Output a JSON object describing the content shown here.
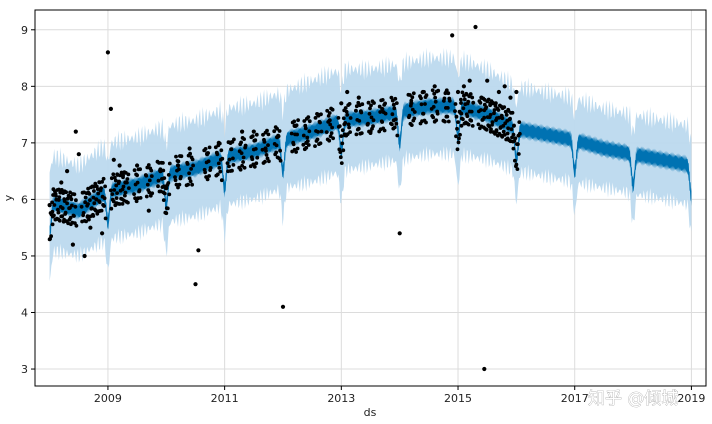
{
  "chart_data": {
    "type": "line",
    "xlabel": "ds",
    "ylabel": "y",
    "xlim": [
      2007.75,
      2019.25
    ],
    "ylim": [
      2.7,
      9.35
    ],
    "x_ticks": [
      2009,
      2011,
      2013,
      2015,
      2017,
      2019
    ],
    "x_tick_labels": [
      "2009",
      "2011",
      "2013",
      "2015",
      "2017",
      "2019"
    ],
    "y_ticks": [
      3,
      4,
      5,
      6,
      7,
      8,
      9
    ],
    "y_tick_labels": [
      "3",
      "4",
      "5",
      "6",
      "7",
      "8",
      "9"
    ],
    "grid": true,
    "legend": "none",
    "series": [
      {
        "kind": "uncertainty_band",
        "color": "#bcd9ee",
        "x": [
          2008.0,
          2008.5,
          2009.0,
          2009.5,
          2010.0,
          2010.5,
          2011.0,
          2011.5,
          2012.0,
          2012.5,
          2013.0,
          2013.5,
          2014.0,
          2014.5,
          2015.0,
          2015.5,
          2016.0,
          2016.5,
          2017.0,
          2017.5,
          2018.0,
          2018.5,
          2019.0
        ],
        "lower": [
          5.1,
          5.0,
          5.3,
          5.4,
          5.6,
          5.7,
          5.9,
          6.0,
          6.2,
          6.3,
          6.5,
          6.6,
          6.7,
          6.8,
          6.8,
          6.7,
          6.5,
          6.4,
          6.3,
          6.2,
          6.1,
          6.0,
          5.9
        ],
        "upper": [
          6.8,
          6.6,
          7.0,
          7.1,
          7.3,
          7.4,
          7.6,
          7.7,
          7.9,
          8.1,
          8.3,
          8.3,
          8.4,
          8.5,
          8.5,
          8.3,
          8.0,
          7.9,
          7.8,
          7.6,
          7.5,
          7.4,
          7.3
        ]
      },
      {
        "kind": "forecast",
        "color": "#0072b2",
        "x": [
          2008.0,
          2008.5,
          2009.0,
          2009.5,
          2010.0,
          2010.5,
          2011.0,
          2011.5,
          2012.0,
          2012.5,
          2013.0,
          2013.5,
          2014.0,
          2014.5,
          2015.0,
          2015.5,
          2016.0,
          2016.5,
          2017.0,
          2017.5,
          2018.0,
          2018.5,
          2019.0
        ],
        "values": [
          5.95,
          5.8,
          6.15,
          6.25,
          6.45,
          6.55,
          6.75,
          6.85,
          7.05,
          7.2,
          7.4,
          7.45,
          7.55,
          7.65,
          7.65,
          7.5,
          7.25,
          7.15,
          7.05,
          6.9,
          6.8,
          6.7,
          6.6
        ],
        "weekly_spread": 0.35,
        "yearly_dip": 0.55
      },
      {
        "kind": "observations",
        "color": "#000000",
        "x": [
          2008.0,
          2008.1,
          2008.2,
          2008.3,
          2008.4,
          2008.45,
          2008.5,
          2008.6,
          2008.7,
          2008.8,
          2008.9,
          2009.0,
          2009.05,
          2009.1,
          2009.2,
          2009.3,
          2009.5,
          2009.7,
          2009.9,
          2010.0,
          2010.2,
          2010.4,
          2010.5,
          2010.55,
          2010.7,
          2010.9,
          2011.1,
          2011.3,
          2011.5,
          2011.7,
          2011.9,
          2012.0,
          2012.2,
          2012.4,
          2012.6,
          2012.8,
          2013.0,
          2013.1,
          2013.3,
          2013.5,
          2013.7,
          2013.9,
          2014.0,
          2014.2,
          2014.4,
          2014.6,
          2014.8,
          2014.9,
          2015.0,
          2015.1,
          2015.2,
          2015.3,
          2015.4,
          2015.45,
          2015.5,
          2015.6,
          2015.7,
          2015.8,
          2015.9,
          2016.0
        ],
        "values": [
          5.9,
          6.1,
          6.3,
          6.5,
          5.2,
          7.2,
          6.8,
          5.0,
          5.5,
          6.0,
          5.4,
          8.6,
          7.6,
          6.7,
          6.6,
          6.3,
          6.6,
          5.8,
          6.5,
          6.2,
          6.6,
          6.9,
          4.5,
          5.1,
          6.8,
          7.0,
          7.0,
          7.2,
          7.2,
          6.9,
          7.1,
          4.1,
          7.3,
          7.0,
          7.5,
          7.4,
          7.7,
          7.9,
          7.8,
          7.2,
          7.6,
          7.4,
          5.4,
          7.7,
          7.9,
          8.0,
          7.9,
          8.9,
          7.9,
          8.0,
          8.1,
          9.05,
          7.8,
          3.0,
          8.1,
          7.7,
          7.9,
          8.0,
          7.8,
          7.9
        ]
      }
    ]
  },
  "watermark": {
    "text": "知乎 @倾城"
  }
}
